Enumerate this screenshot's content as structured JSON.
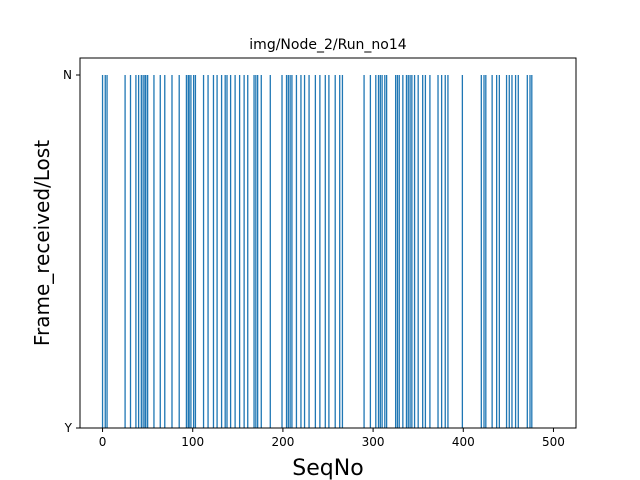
{
  "chart_data": {
    "type": "bar",
    "title": "img/Node_2/Run_no14",
    "xlabel": "SeqNo",
    "ylabel": "Frame_received/Lost",
    "xlim": [
      -25,
      525
    ],
    "x_ticks": [
      0,
      100,
      200,
      300,
      400,
      500
    ],
    "y_categories": [
      "Y",
      "N"
    ],
    "grid": false,
    "bar_color": "#1f77b4",
    "series": [
      {
        "values_at": "N",
        "x": [
          0,
          3,
          5,
          25,
          31,
          37,
          40,
          43,
          45,
          47,
          48,
          50,
          57,
          64,
          69,
          77,
          85,
          93,
          95,
          96,
          98,
          101,
          103,
          112,
          117,
          123,
          127,
          132,
          136,
          138,
          142,
          147,
          152,
          157,
          161,
          168,
          170,
          172,
          176,
          186,
          199,
          204,
          206,
          208,
          210,
          215,
          220,
          224,
          229,
          236,
          241,
          247,
          251,
          258,
          263,
          266,
          290,
          297,
          303,
          306,
          308,
          310,
          313,
          315,
          325,
          327,
          329,
          333,
          337,
          339,
          341,
          343,
          346,
          350,
          355,
          358,
          363,
          372,
          376,
          380,
          383,
          399,
          420,
          423,
          425,
          432,
          437,
          440,
          448,
          451,
          454,
          458,
          461,
          471,
          474,
          476
        ]
      }
    ]
  }
}
